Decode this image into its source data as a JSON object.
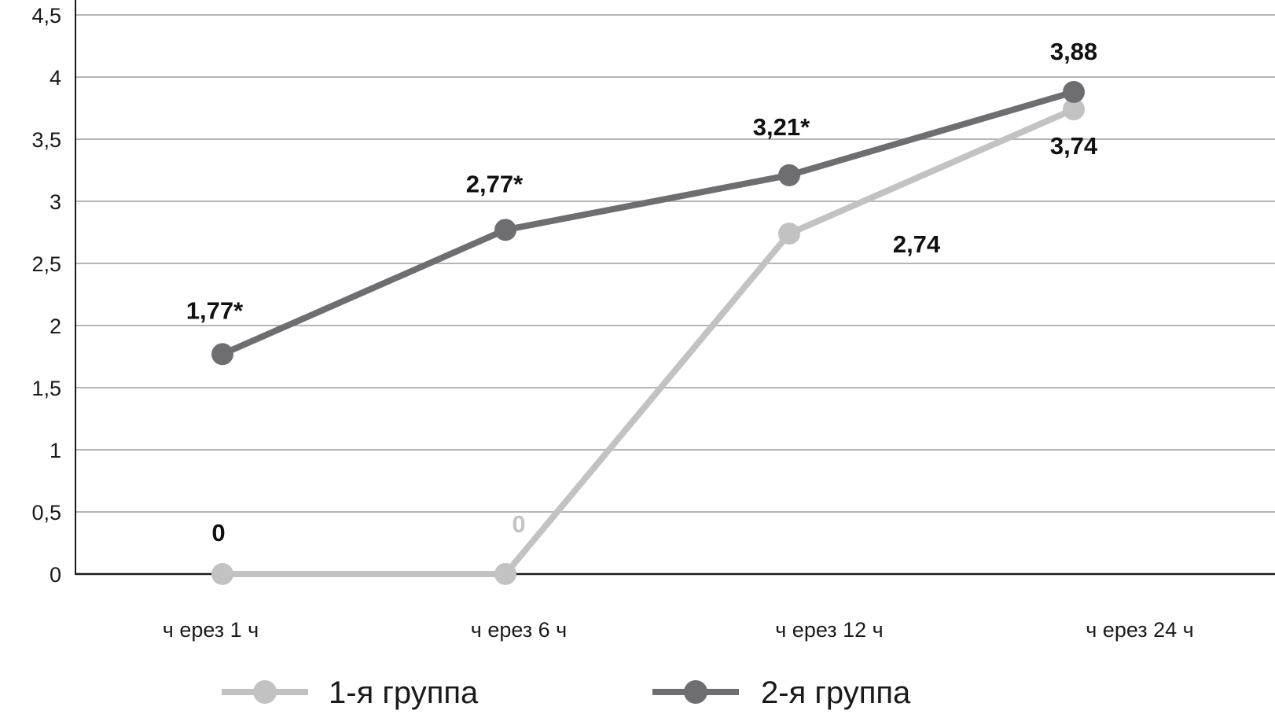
{
  "chart_data": {
    "type": "line",
    "categories": [
      "ч ерез 1 ч",
      "ч ерез 6 ч",
      "ч ерез 12 ч",
      "ч ерез 24 ч"
    ],
    "y_ticks": [
      "0",
      "0,5",
      "1",
      "1,5",
      "2",
      "2,5",
      "3",
      "3,5",
      "4",
      "4,5"
    ],
    "ylim": [
      0,
      4.5
    ],
    "grid": true,
    "legend_position": "bottom",
    "series": [
      {
        "name": "1-я группа",
        "values": [
          0,
          0,
          2.74,
          3.74
        ],
        "labels": [
          "0",
          "0",
          "2,74",
          "3,74"
        ],
        "label_color": [
          "#111111",
          "#c4c4c4",
          "#111111",
          "#111111"
        ],
        "color": "#c2c2c2"
      },
      {
        "name": "2-я группа",
        "values": [
          1.77,
          2.77,
          3.21,
          3.88
        ],
        "labels": [
          "1,77*",
          "2,77*",
          "3,21*",
          "3,88"
        ],
        "label_color": [
          "#111111",
          "#111111",
          "#111111",
          "#111111"
        ],
        "color": "#6e6e70"
      }
    ]
  }
}
